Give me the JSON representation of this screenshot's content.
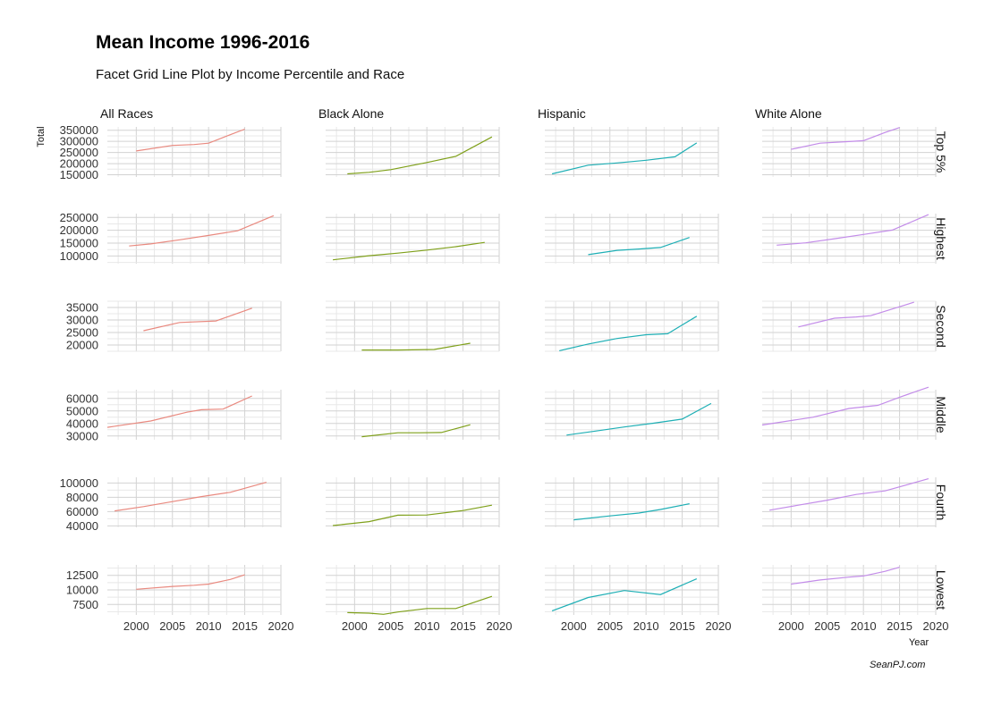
{
  "title": "Mean Income 1996-2016",
  "subtitle": "Facet Grid Line Plot by Income Percentile and Race",
  "caption": "SeanPJ.com",
  "chart_data": {
    "type": "line",
    "layout": "facet_grid",
    "xlabel": "Year",
    "ylabel": "Total",
    "x_ticks": [
      2000,
      2005,
      2010,
      2015,
      2020
    ],
    "xlim": [
      1996,
      2020
    ],
    "grid": true,
    "columns": [
      {
        "name": "All Races",
        "color": "#E9897F"
      },
      {
        "name": "Black Alone",
        "color": "#7FA01A"
      },
      {
        "name": "Hispanic",
        "color": "#1EAFB5"
      },
      {
        "name": "White Alone",
        "color": "#C38CE9"
      }
    ],
    "rows": [
      {
        "name": "Top 5%",
        "ylim": [
          140000,
          365000
        ],
        "y_ticks": [
          150000,
          200000,
          250000,
          300000,
          350000
        ],
        "series": [
          {
            "race": "All Races",
            "x": [
              2000,
              2005,
              2008,
              2010,
              2013,
              2015
            ],
            "y": [
              257000,
              282000,
              286000,
              292000,
              330000,
              355000
            ]
          },
          {
            "race": "Black Alone",
            "x": [
              1999,
              2002,
              2005,
              2010,
              2014,
              2019
            ],
            "y": [
              154000,
              161000,
              173000,
              205000,
              233000,
              320000
            ]
          },
          {
            "race": "Hispanic",
            "x": [
              1997,
              2002,
              2006,
              2010,
              2014,
              2017
            ],
            "y": [
              154000,
              193000,
              203000,
              215000,
              231000,
              293000
            ]
          },
          {
            "race": "White Alone",
            "x": [
              2000,
              2004,
              2008,
              2010,
              2013,
              2015
            ],
            "y": [
              264000,
              292000,
              299000,
              303000,
              340000,
              362000
            ]
          }
        ]
      },
      {
        "name": "Highest",
        "ylim": [
          70000,
          265000
        ],
        "y_ticks": [
          100000,
          150000,
          200000,
          250000
        ],
        "series": [
          {
            "race": "All Races",
            "x": [
              1999,
              2002,
              2006,
              2010,
              2014,
              2019
            ],
            "y": [
              139000,
              147000,
              163000,
              180000,
              198000,
              257000
            ]
          },
          {
            "race": "Black Alone",
            "x": [
              1997,
              2002,
              2006,
              2010,
              2014,
              2018
            ],
            "y": [
              85000,
              101000,
              111000,
              123000,
              136000,
              153000
            ]
          },
          {
            "race": "Hispanic",
            "x": [
              2002,
              2006,
              2009,
              2012,
              2016
            ],
            "y": [
              105000,
              122000,
              127000,
              133000,
              172000
            ]
          },
          {
            "race": "White Alone",
            "x": [
              1998,
              2002,
              2006,
              2010,
              2014,
              2019
            ],
            "y": [
              142000,
              151000,
              167000,
              184000,
              201000,
              261000
            ]
          }
        ]
      },
      {
        "name": "Second",
        "ylim": [
          17500,
          37500
        ],
        "y_ticks": [
          20000,
          25000,
          30000,
          35000
        ],
        "series": [
          {
            "race": "All Races",
            "x": [
              2001,
              2006,
              2011,
              2016
            ],
            "y": [
              25700,
              29000,
              29600,
              34700
            ]
          },
          {
            "race": "Black Alone",
            "x": [
              2001,
              2006,
              2011,
              2016
            ],
            "y": [
              18000,
              18000,
              18200,
              20700
            ]
          },
          {
            "race": "Hispanic",
            "x": [
              1998,
              2002,
              2006,
              2010,
              2013,
              2017
            ],
            "y": [
              17700,
              20400,
              22600,
              24100,
              24500,
              31500
            ]
          },
          {
            "race": "White Alone",
            "x": [
              2001,
              2006,
              2009,
              2011,
              2017
            ],
            "y": [
              27200,
              30700,
              31200,
              31700,
              37100
            ]
          }
        ]
      },
      {
        "name": "Middle",
        "ylim": [
          27000,
          67000
        ],
        "y_ticks": [
          30000,
          40000,
          50000,
          60000
        ],
        "series": [
          {
            "race": "All Races",
            "x": [
              1996,
              2002,
              2007,
              2009,
              2012,
              2016
            ],
            "y": [
              36900,
              42000,
              49000,
              51000,
              51500,
              62000
            ]
          },
          {
            "race": "Black Alone",
            "x": [
              2001,
              2006,
              2009,
              2012,
              2016
            ],
            "y": [
              29400,
              32600,
              32600,
              32800,
              39000
            ]
          },
          {
            "race": "Hispanic",
            "x": [
              1999,
              2003,
              2007,
              2011,
              2015,
              2019
            ],
            "y": [
              30700,
              33900,
              37200,
              40200,
              43500,
              56000
            ]
          },
          {
            "race": "White Alone",
            "x": [
              1996,
              2003,
              2008,
              2012,
              2015,
              2019
            ],
            "y": [
              38800,
              45000,
              52000,
              54500,
              61000,
              69000
            ]
          }
        ]
      },
      {
        "name": "Fourth",
        "ylim": [
          38000,
          108000
        ],
        "y_ticks": [
          40000,
          60000,
          80000,
          100000
        ],
        "series": [
          {
            "race": "All Races",
            "x": [
              1997,
              2001,
              2005,
              2009,
              2013,
              2018
            ],
            "y": [
              61000,
              67000,
              74000,
              81000,
              87000,
              101000
            ]
          },
          {
            "race": "Black Alone",
            "x": [
              1997,
              2002,
              2006,
              2010,
              2015,
              2019
            ],
            "y": [
              40500,
              46000,
              55000,
              55300,
              61500,
              69000
            ]
          },
          {
            "race": "Hispanic",
            "x": [
              2000,
              2005,
              2009,
              2012,
              2016
            ],
            "y": [
              48500,
              54000,
              58000,
              63000,
              71000
            ]
          },
          {
            "race": "White Alone",
            "x": [
              1997,
              2001,
              2005,
              2009,
              2013,
              2019
            ],
            "y": [
              62000,
              69000,
              76000,
              84000,
              89000,
              106000
            ]
          }
        ]
      },
      {
        "name": "Lowest",
        "ylim": [
          5700,
          14300
        ],
        "y_ticks": [
          7500,
          10000,
          12500
        ],
        "series": [
          {
            "race": "All Races",
            "x": [
              2000,
              2005,
              2008,
              2010,
              2013,
              2015
            ],
            "y": [
              10100,
              10600,
              10800,
              11000,
              11800,
              12600
            ]
          },
          {
            "race": "Black Alone",
            "x": [
              1999,
              2002,
              2004,
              2006,
              2010,
              2014,
              2019
            ],
            "y": [
              6100,
              6000,
              5800,
              6200,
              6800,
              6800,
              8900
            ]
          },
          {
            "race": "Hispanic",
            "x": [
              1997,
              2002,
              2007,
              2012,
              2017
            ],
            "y": [
              6400,
              8700,
              9900,
              9200,
              11900
            ]
          },
          {
            "race": "White Alone",
            "x": [
              2000,
              2004,
              2008,
              2010,
              2013,
              2015
            ],
            "y": [
              11000,
              11700,
              12200,
              12400,
              13200,
              13900
            ]
          }
        ]
      }
    ]
  }
}
